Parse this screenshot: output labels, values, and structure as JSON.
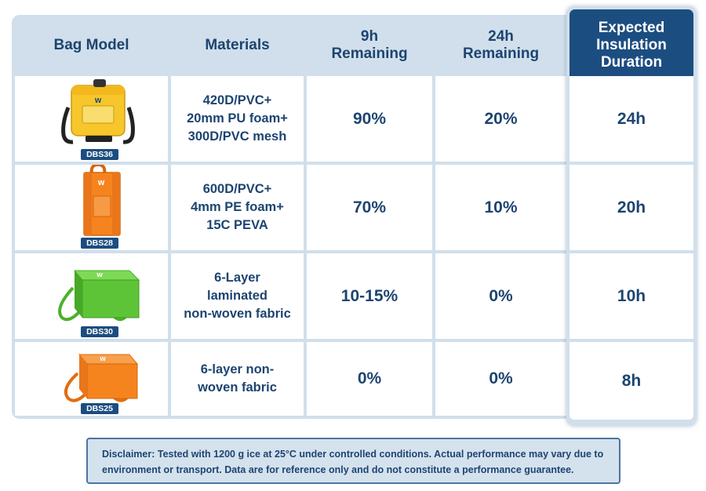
{
  "headers": {
    "bag_model": "Bag Model",
    "materials": "Materials",
    "h9": "9h\nRemaining",
    "h24": "24h\nRemaining",
    "expected": "Expected\nInsulation\nDuration"
  },
  "rows": [
    {
      "model": "DBS36",
      "materials": "420D/PVC+\n20mm PU foam+\n300D/PVC mesh",
      "h9": "90%",
      "h24": "20%",
      "expected": "24h",
      "bag_color": "#f7c62a",
      "bag_icon": "yellow-cooler-bag-icon"
    },
    {
      "model": "DBS28",
      "materials": "600D/PVC+\n4mm PE foam+\n15C PEVA",
      "h9": "70%",
      "h24": "10%",
      "expected": "20h",
      "bag_color": "#f5841f",
      "bag_icon": "orange-tote-bag-icon"
    },
    {
      "model": "DBS30",
      "materials": "6-Layer\nlaminated\nnon-woven fabric",
      "h9": "10-15%",
      "h24": "0%",
      "expected": "10h",
      "bag_color": "#5ec437",
      "bag_icon": "green-cooler-box-icon"
    },
    {
      "model": "DBS25",
      "materials": "6-layer non-\nwoven fabric",
      "h9": "0%",
      "h24": "0%",
      "expected": "8h",
      "bag_color": "#f5841f",
      "bag_icon": "orange-cooler-box-icon"
    }
  ],
  "disclaimer": "Disclaimer: Tested with 1200 g ice at 25°C under controlled conditions. Actual performance may vary due to environment or transport. Data are for reference only and do not constitute a performance guarantee.",
  "colors": {
    "header_bg": "#d0dfeb",
    "accent": "#1c4d80",
    "text": "#1d4470"
  }
}
